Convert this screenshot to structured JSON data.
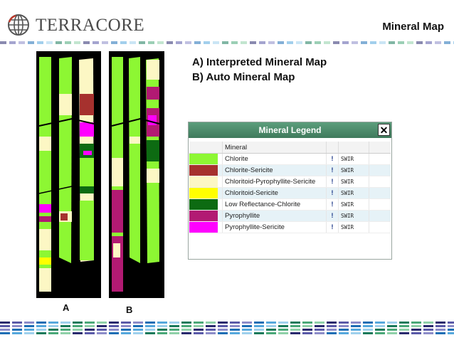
{
  "header": {
    "logo_text": "TERRACORE",
    "title": "Mineral Map"
  },
  "description": {
    "line_a": "A)  Interpreted Mineral Map",
    "line_b": "B)  Auto Mineral Map"
  },
  "panels": {
    "a_label": "A",
    "b_label": "B"
  },
  "legend": {
    "title": "Mineral Legend",
    "close_glyph": "✕",
    "column_header": "Mineral",
    "rows": [
      {
        "name": "Chlorite",
        "color": "#8df733",
        "flag": "!",
        "type": "SWIR"
      },
      {
        "name": "Chlorite-Sericite",
        "color": "#a6312e",
        "flag": "!",
        "type": "SWIR"
      },
      {
        "name": "Chloritoid-Pyrophyllite-Sericite",
        "color": "#fcf7c4",
        "flag": "!",
        "type": "SWIR"
      },
      {
        "name": "Chloritoid-Sericite",
        "color": "#ffff00",
        "flag": "!",
        "type": "SWIR"
      },
      {
        "name": "Low Reflectance-Chlorite",
        "color": "#0d6b12",
        "flag": "!",
        "type": "SWIR"
      },
      {
        "name": "Pyrophyllite",
        "color": "#b21a73",
        "flag": "!",
        "type": "SWIR"
      },
      {
        "name": "Pyrophyllite-Sericite",
        "color": "#ff00ff",
        "flag": "!",
        "type": "SWIR"
      }
    ]
  },
  "colors": {
    "legend_title_bar": "#4a8a6a",
    "stripe_palette": [
      "#2a2a6e",
      "#5a5aa8",
      "#8c8cc8",
      "#1e6eb4",
      "#56a8dc",
      "#9fd0ec",
      "#1a7a5a",
      "#4aa878",
      "#8fd0a8"
    ]
  }
}
